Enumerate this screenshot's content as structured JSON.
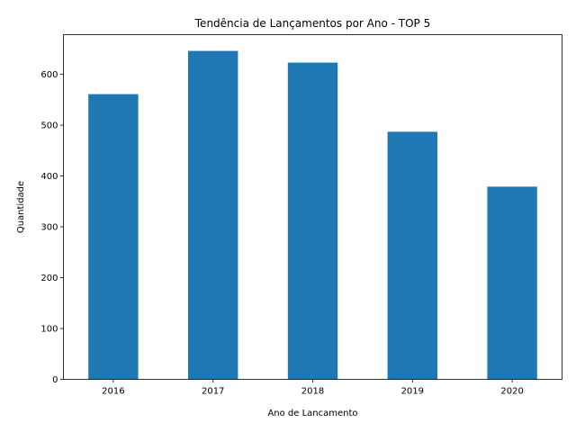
{
  "chart_data": {
    "type": "bar",
    "title": "Tendência de Lançamentos por Ano - TOP 5",
    "xlabel": "Ano de Lancamento",
    "ylabel": "Quantidade",
    "categories": [
      "2016",
      "2017",
      "2018",
      "2019",
      "2020"
    ],
    "values": [
      561,
      646,
      623,
      487,
      379
    ],
    "ylim": [
      0,
      678
    ],
    "yticks": [
      0,
      100,
      200,
      300,
      400,
      500,
      600
    ],
    "bar_color": "#1f77b4",
    "grid": false,
    "legend": "none"
  }
}
